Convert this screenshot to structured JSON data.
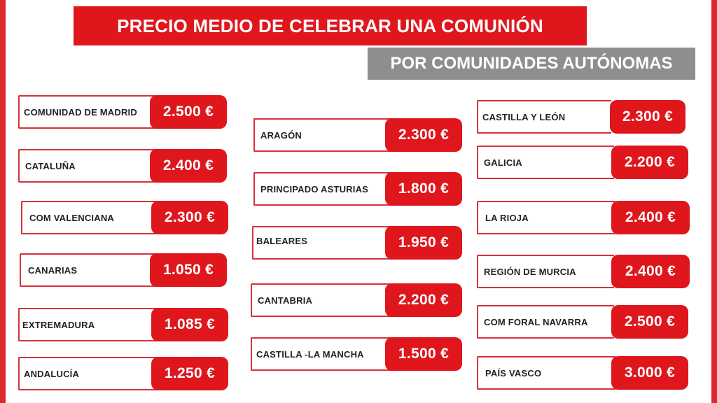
{
  "header": {
    "title": "PRECIO MEDIO DE CELEBRAR UNA COMUNIÓN",
    "subtitle": "POR COMUNIDADES AUTÓNOMAS"
  },
  "regions": [
    {
      "name": "COMUNIDAD DE MADRID",
      "price": "2.500 €"
    },
    {
      "name": "CATALUÑA",
      "price": "2.400 €"
    },
    {
      "name": "COM VALENCIANA",
      "price": "2.300 €"
    },
    {
      "name": "CANARIAS",
      "price": "1.050 €"
    },
    {
      "name": "EXTREMADURA",
      "price": "1.085 €"
    },
    {
      "name": "ANDALUCÍA",
      "price": "1.250 €"
    },
    {
      "name": "ARAGÓN",
      "price": "2.300 €"
    },
    {
      "name": "PRINCIPADO ASTURIAS",
      "price": "1.800 €"
    },
    {
      "name": "BALEARES",
      "price": "1.950 €"
    },
    {
      "name": "CANTABRIA",
      "price": "2.200 €"
    },
    {
      "name": "CASTILLA -LA MANCHA",
      "price": "1.500 €"
    },
    {
      "name": "CASTILLA Y LEÓN",
      "price": "2.300 €"
    },
    {
      "name": "GALICIA",
      "price": "2.200 €"
    },
    {
      "name": "LA RIOJA",
      "price": "2.400 €"
    },
    {
      "name": "REGIÓN DE MURCIA",
      "price": "2.400 €"
    },
    {
      "name": "COM FORAL NAVARRA",
      "price": "2.500 €"
    },
    {
      "name": "PAÍS VASCO",
      "price": "3.000 €"
    }
  ]
}
